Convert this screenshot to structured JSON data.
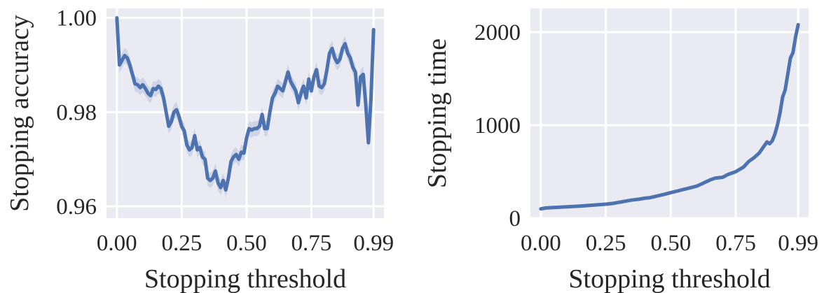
{
  "colors": {
    "background": "#eaeaf2",
    "grid": "#ffffff",
    "line": "#4c72b0",
    "band": "#4c72b0",
    "text": "#262626"
  },
  "chart_data": [
    {
      "type": "line",
      "xlabel": "Stopping threshold",
      "ylabel": "Stopping accuracy",
      "xlim": [
        -0.04,
        1.03
      ],
      "ylim": [
        0.9575,
        1.002
      ],
      "grid": true,
      "xticks": [
        0.0,
        0.25,
        0.5,
        0.75,
        0.99
      ],
      "xtick_labels": [
        "0.00",
        "0.25",
        "0.50",
        "0.75",
        "0.99"
      ],
      "yticks": [
        0.96,
        0.98,
        1.0
      ],
      "ytick_labels": [
        "0.96",
        "0.98",
        "1.00"
      ],
      "series": [
        {
          "x": [
            0.0,
            0.01,
            0.02,
            0.03,
            0.04,
            0.05,
            0.06,
            0.07,
            0.08,
            0.09,
            0.1,
            0.11,
            0.12,
            0.13,
            0.14,
            0.15,
            0.16,
            0.17,
            0.18,
            0.19,
            0.2,
            0.21,
            0.22,
            0.23,
            0.24,
            0.25,
            0.26,
            0.27,
            0.28,
            0.29,
            0.3,
            0.31,
            0.32,
            0.33,
            0.34,
            0.35,
            0.36,
            0.37,
            0.38,
            0.39,
            0.4,
            0.41,
            0.42,
            0.43,
            0.44,
            0.45,
            0.46,
            0.47,
            0.48,
            0.49,
            0.5,
            0.51,
            0.52,
            0.53,
            0.54,
            0.55,
            0.56,
            0.57,
            0.58,
            0.59,
            0.6,
            0.61,
            0.62,
            0.63,
            0.64,
            0.65,
            0.66,
            0.67,
            0.68,
            0.69,
            0.7,
            0.71,
            0.72,
            0.73,
            0.74,
            0.75,
            0.76,
            0.77,
            0.78,
            0.79,
            0.8,
            0.81,
            0.82,
            0.83,
            0.84,
            0.85,
            0.86,
            0.87,
            0.88,
            0.89,
            0.9,
            0.91,
            0.92,
            0.93,
            0.94,
            0.95,
            0.96,
            0.97,
            0.98,
            0.99
          ],
          "y": [
            1.0,
            0.99,
            0.991,
            0.992,
            0.9915,
            0.99,
            0.988,
            0.986,
            0.9858,
            0.9852,
            0.9858,
            0.985,
            0.984,
            0.9835,
            0.985,
            0.9848,
            0.9855,
            0.985,
            0.983,
            0.98,
            0.977,
            0.978,
            0.98,
            0.9805,
            0.979,
            0.977,
            0.976,
            0.973,
            0.972,
            0.9725,
            0.975,
            0.972,
            0.9725,
            0.9705,
            0.97,
            0.966,
            0.9655,
            0.966,
            0.9675,
            0.965,
            0.964,
            0.9655,
            0.9635,
            0.966,
            0.9695,
            0.9705,
            0.971,
            0.97,
            0.9715,
            0.9713,
            0.9745,
            0.9765,
            0.9762,
            0.9765,
            0.9765,
            0.977,
            0.9795,
            0.9765,
            0.9765,
            0.98,
            0.983,
            0.984,
            0.9855,
            0.985,
            0.9845,
            0.9865,
            0.9885,
            0.9865,
            0.9855,
            0.9845,
            0.982,
            0.984,
            0.9855,
            0.983,
            0.987,
            0.9845,
            0.9875,
            0.989,
            0.9855,
            0.9852,
            0.986,
            0.989,
            0.9925,
            0.9935,
            0.9915,
            0.9905,
            0.9912,
            0.9935,
            0.9945,
            0.9925,
            0.9915,
            0.9895,
            0.9885,
            0.9815,
            0.9875,
            0.988,
            0.9815,
            0.9735,
            0.983,
            0.9975
          ]
        }
      ]
    },
    {
      "type": "line",
      "xlabel": "Stopping threshold",
      "ylabel": "Stopping time",
      "xlim": [
        -0.04,
        1.03
      ],
      "ylim": [
        0,
        2255
      ],
      "grid": true,
      "xticks": [
        0.0,
        0.25,
        0.5,
        0.75,
        0.99
      ],
      "xtick_labels": [
        "0.00",
        "0.25",
        "0.50",
        "0.75",
        "0.99"
      ],
      "yticks": [
        0,
        1000,
        2000
      ],
      "ytick_labels": [
        "0",
        "1000",
        "2000"
      ],
      "series": [
        {
          "x": [
            0.0,
            0.02,
            0.05,
            0.1,
            0.15,
            0.2,
            0.25,
            0.28,
            0.3,
            0.32,
            0.35,
            0.38,
            0.4,
            0.42,
            0.45,
            0.48,
            0.5,
            0.53,
            0.55,
            0.58,
            0.6,
            0.62,
            0.65,
            0.67,
            0.7,
            0.72,
            0.75,
            0.78,
            0.8,
            0.82,
            0.84,
            0.86,
            0.87,
            0.88,
            0.89,
            0.9,
            0.91,
            0.92,
            0.93,
            0.94,
            0.95,
            0.96,
            0.97,
            0.98,
            0.99
          ],
          "y": [
            100,
            110,
            115,
            122,
            130,
            140,
            150,
            160,
            170,
            180,
            195,
            205,
            215,
            220,
            240,
            260,
            275,
            295,
            310,
            330,
            345,
            370,
            410,
            430,
            440,
            470,
            500,
            550,
            610,
            650,
            700,
            780,
            820,
            800,
            830,
            900,
            1000,
            1130,
            1300,
            1380,
            1550,
            1720,
            1780,
            1950,
            2080
          ]
        }
      ]
    }
  ]
}
